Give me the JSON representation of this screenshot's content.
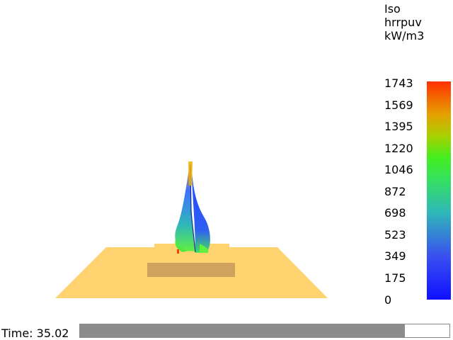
{
  "colorbar": {
    "title_lines": [
      "Iso",
      "hrrpuv",
      "kW/m3"
    ],
    "ticks": [
      "1743",
      "1569",
      "1395",
      "1220",
      "1046",
      "872",
      "698",
      "523",
      "349",
      "175",
      "0"
    ]
  },
  "playback": {
    "time_label": "Time: 35.02",
    "progress_fraction": 0.88
  },
  "colors": {
    "floor": "#FFD470",
    "obstruction": "#CFA25E",
    "colormap_low": "#1010FF",
    "colormap_high": "#FF3000"
  }
}
